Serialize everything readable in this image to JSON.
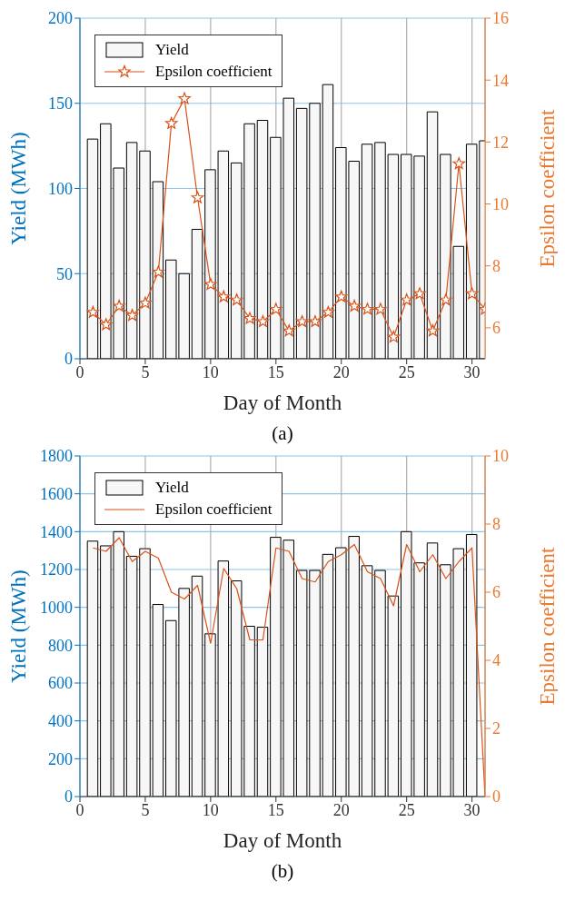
{
  "chart_data": [
    {
      "type": "bar",
      "x": [
        1,
        2,
        3,
        4,
        5,
        6,
        7,
        8,
        9,
        10,
        11,
        12,
        13,
        14,
        15,
        16,
        17,
        18,
        19,
        20,
        21,
        22,
        23,
        24,
        25,
        26,
        27,
        28,
        29,
        30,
        31
      ],
      "xlabel": "Day of Month",
      "ylabel": "Yield (MWh)",
      "y2label": "Epsilon coefficient",
      "series": [
        {
          "name": "Yield",
          "color": "#f7f7f7",
          "values": [
            129,
            138,
            112,
            127,
            122,
            104,
            58,
            50,
            76,
            111,
            122,
            115,
            138,
            140,
            130,
            153,
            147,
            150,
            161,
            124,
            116,
            126,
            127,
            120,
            120,
            119,
            145,
            120,
            66,
            126,
            128
          ]
        },
        {
          "name": "Epsilon coefficient",
          "type": "line",
          "axis": "y2",
          "color": "#d95319",
          "values": [
            6.5,
            6.1,
            6.7,
            6.4,
            6.8,
            7.8,
            12.6,
            13.4,
            10.2,
            7.4,
            7.0,
            6.9,
            6.3,
            6.2,
            6.6,
            5.9,
            6.2,
            6.2,
            6.5,
            7.0,
            6.7,
            6.6,
            6.6,
            5.7,
            6.9,
            7.1,
            5.9,
            6.9,
            11.3,
            7.1,
            6.6
          ]
        }
      ],
      "xlim": [
        0,
        31
      ],
      "xticks": [
        0,
        5,
        10,
        15,
        20,
        25,
        30
      ],
      "ylim": [
        0,
        200
      ],
      "yticks": [
        0,
        50,
        100,
        150,
        200
      ],
      "y2lim": [
        5,
        16
      ],
      "y2ticks": [
        6,
        8,
        10,
        12,
        14,
        16
      ],
      "grid": true,
      "legend": "top left",
      "marker": "star",
      "annotations": [
        "(a)"
      ]
    },
    {
      "type": "bar",
      "x": [
        1,
        2,
        3,
        4,
        5,
        6,
        7,
        8,
        9,
        10,
        11,
        12,
        13,
        14,
        15,
        16,
        17,
        18,
        19,
        20,
        21,
        22,
        23,
        24,
        25,
        26,
        27,
        28,
        29,
        30
      ],
      "xlabel": "Day of Month",
      "ylabel": "Yield (MWh)",
      "y2label": "Epsilon coefficient",
      "series": [
        {
          "name": "Yield",
          "color": "#f7f7f7",
          "values": [
            1350,
            1325,
            1400,
            1270,
            1310,
            1015,
            930,
            1100,
            1165,
            860,
            1245,
            1140,
            900,
            895,
            1370,
            1355,
            1195,
            1195,
            1280,
            1315,
            1375,
            1220,
            1195,
            1060,
            1400,
            1235,
            1340,
            1225,
            1310,
            1385
          ]
        },
        {
          "name": "Epsilon coefficient",
          "type": "line",
          "axis": "y2",
          "color": "#d95319",
          "x": [
            1,
            2,
            3,
            4,
            5,
            6,
            7,
            8,
            9,
            10,
            11,
            12,
            13,
            14,
            15,
            16,
            17,
            18,
            19,
            20,
            21,
            22,
            23,
            24,
            25,
            26,
            27,
            28,
            29,
            30,
            31
          ],
          "values": [
            7.3,
            7.2,
            7.6,
            6.9,
            7.2,
            7.0,
            6.0,
            5.8,
            6.2,
            4.5,
            6.7,
            6.1,
            4.6,
            4.6,
            7.3,
            7.2,
            6.4,
            6.3,
            6.9,
            7.1,
            7.4,
            6.6,
            6.4,
            5.6,
            7.4,
            6.6,
            7.1,
            6.4,
            6.9,
            7.3,
            0
          ]
        }
      ],
      "xlim": [
        0,
        31
      ],
      "xticks": [
        0,
        5,
        10,
        15,
        20,
        25,
        30
      ],
      "ylim": [
        0,
        1800
      ],
      "yticks": [
        0,
        200,
        400,
        600,
        800,
        1000,
        1200,
        1400,
        1600,
        1800
      ],
      "y2lim": [
        0,
        10
      ],
      "y2ticks": [
        0,
        2,
        4,
        6,
        8,
        10
      ],
      "grid": true,
      "legend": "top left",
      "marker": "none",
      "annotations": [
        "(b)"
      ]
    }
  ]
}
